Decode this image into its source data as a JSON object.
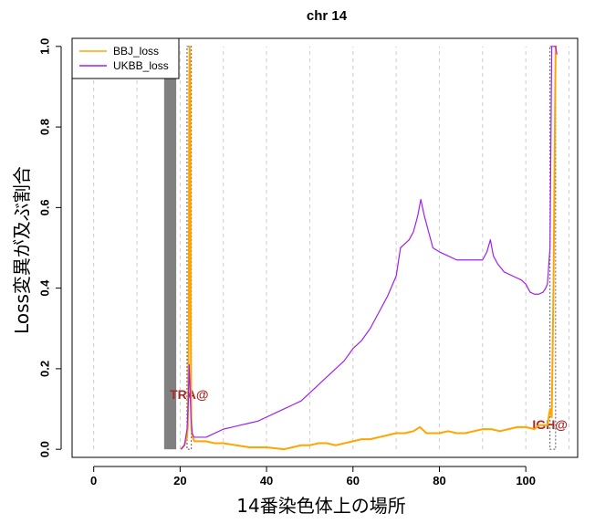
{
  "chart_data": {
    "type": "line",
    "title": "chr 14",
    "xlabel": "14番染色体上の場所",
    "ylabel": "Loss変異が及ぶ割合",
    "xlim": [
      -5,
      112
    ],
    "ylim": [
      -0.02,
      1.02
    ],
    "x_ticks": [
      0,
      20,
      40,
      60,
      80,
      100
    ],
    "y_ticks": [
      0.0,
      0.2,
      0.4,
      0.6,
      0.8,
      1.0
    ],
    "y_tick_labels": [
      "0.0",
      "0.2",
      "0.4",
      "0.6",
      "0.8",
      "1.0"
    ],
    "grid": "vertical dashed every 10",
    "legend": "top-left",
    "centromere_band": [
      16.3,
      19.1
    ],
    "gene_markers": [
      {
        "label": "TRA@",
        "start": 21.6,
        "end": 22.6
      },
      {
        "label": "IGH@",
        "start": 105.6,
        "end": 106.9
      }
    ],
    "series": [
      {
        "name": "BBJ_loss",
        "color": "#FFA500",
        "x": [
          20.2,
          21.0,
          21.6,
          21.8,
          22.0,
          22.1,
          22.2,
          22.35,
          22.45,
          22.6,
          22.9,
          23.3,
          24.0,
          26,
          28,
          30,
          33,
          36,
          40,
          44,
          46,
          48,
          50,
          52,
          54,
          56,
          58,
          60,
          62,
          64,
          66,
          68,
          70,
          72,
          74,
          75.5,
          77,
          80,
          82,
          84,
          86,
          88,
          90,
          92,
          94,
          96,
          98,
          100,
          102,
          103,
          104,
          105,
          105.6,
          106.0,
          106.4,
          106.9,
          107.2
        ],
        "y": [
          0.0,
          0.01,
          0.03,
          0.06,
          0.3,
          0.9,
          1.0,
          0.9,
          0.3,
          0.05,
          0.03,
          0.02,
          0.02,
          0.02,
          0.015,
          0.015,
          0.01,
          0.005,
          0.005,
          0.0,
          0.005,
          0.01,
          0.01,
          0.015,
          0.015,
          0.01,
          0.015,
          0.02,
          0.025,
          0.025,
          0.03,
          0.035,
          0.04,
          0.04,
          0.045,
          0.055,
          0.04,
          0.04,
          0.045,
          0.04,
          0.04,
          0.045,
          0.05,
          0.05,
          0.045,
          0.05,
          0.055,
          0.055,
          0.05,
          0.06,
          0.06,
          0.06,
          0.1,
          0.08,
          0.4,
          1.0,
          1.0
        ]
      },
      {
        "name": "UKBB_loss",
        "color": "#A020F0",
        "x": [
          20.2,
          21.0,
          21.6,
          21.9,
          22.1,
          22.3,
          22.5,
          22.8,
          23.2,
          24,
          26,
          28,
          30,
          32,
          34,
          36,
          38,
          40,
          42,
          44,
          46,
          48,
          50,
          52,
          54,
          56,
          58,
          60,
          62,
          64,
          66,
          68,
          70,
          71,
          72,
          73,
          74,
          75,
          75.7,
          76.5,
          77.5,
          78.5,
          80,
          82,
          84,
          86,
          88,
          90,
          91,
          91.8,
          92.5,
          93.5,
          95,
          97,
          99,
          100,
          101,
          102,
          103,
          104,
          104.6,
          105,
          105.6,
          106.0,
          106.4,
          106.9,
          107.2
        ],
        "y": [
          0.0,
          0.01,
          0.05,
          0.12,
          0.21,
          0.15,
          0.08,
          0.04,
          0.03,
          0.03,
          0.03,
          0.04,
          0.05,
          0.055,
          0.06,
          0.065,
          0.07,
          0.08,
          0.09,
          0.1,
          0.11,
          0.12,
          0.14,
          0.16,
          0.18,
          0.2,
          0.22,
          0.25,
          0.27,
          0.3,
          0.34,
          0.38,
          0.43,
          0.5,
          0.51,
          0.52,
          0.54,
          0.58,
          0.62,
          0.58,
          0.54,
          0.5,
          0.49,
          0.48,
          0.47,
          0.47,
          0.47,
          0.47,
          0.49,
          0.52,
          0.48,
          0.46,
          0.44,
          0.43,
          0.42,
          0.41,
          0.39,
          0.385,
          0.385,
          0.39,
          0.4,
          0.41,
          0.5,
          1.0,
          1.0,
          1.0,
          0.98
        ]
      }
    ]
  }
}
